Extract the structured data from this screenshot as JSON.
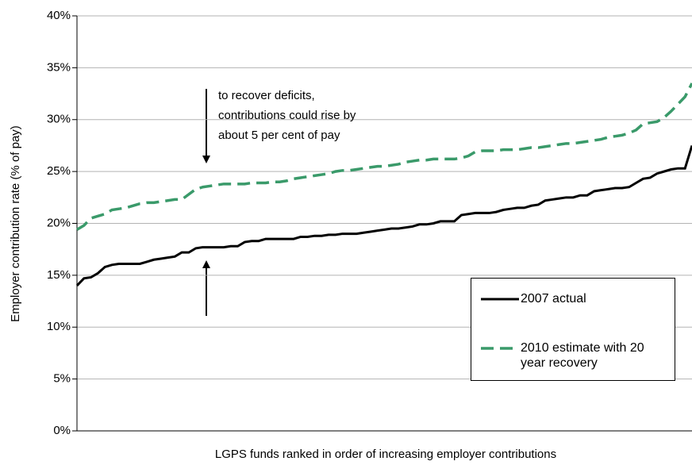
{
  "chart_data": {
    "type": "line",
    "y_label": "Employer contribution rate (% of pay)",
    "x_label": "LGPS funds ranked in order of increasing employer contributions",
    "annotation": [
      "to recover deficits,",
      "contributions could rise by",
      "about 5 per cent of pay"
    ],
    "categories": [
      null,
      null,
      null,
      null,
      null,
      null,
      null,
      null,
      null,
      null,
      null,
      null,
      null,
      null,
      null,
      null,
      null,
      null,
      null,
      null,
      null,
      null,
      null,
      null,
      null,
      null,
      null,
      null,
      null,
      null,
      null,
      null,
      null,
      null,
      null,
      null,
      null,
      null,
      null,
      null,
      null,
      null,
      null,
      null,
      null,
      null,
      null,
      null,
      null,
      null,
      null,
      null,
      null,
      null,
      null,
      null,
      null,
      null,
      null,
      null,
      null,
      null,
      null,
      null,
      null,
      null,
      null,
      null,
      null,
      null,
      null,
      null,
      null,
      null,
      null,
      null,
      null,
      null,
      null,
      null,
      null,
      null,
      null,
      null,
      null,
      null,
      null,
      null,
      null
    ],
    "series": [
      {
        "name": "2007 actual",
        "color": "#000000",
        "linestyle": "solid",
        "values": [
          14.0,
          14.7,
          14.8,
          15.2,
          15.8,
          16.0,
          16.1,
          16.1,
          16.1,
          16.1,
          16.3,
          16.5,
          16.6,
          16.7,
          16.8,
          17.2,
          17.2,
          17.6,
          17.7,
          17.7,
          17.7,
          17.7,
          17.8,
          17.8,
          18.2,
          18.3,
          18.3,
          18.5,
          18.5,
          18.5,
          18.5,
          18.5,
          18.7,
          18.7,
          18.8,
          18.8,
          18.9,
          18.9,
          19.0,
          19.0,
          19.0,
          19.1,
          19.2,
          19.3,
          19.4,
          19.5,
          19.5,
          19.6,
          19.7,
          19.9,
          19.9,
          20.0,
          20.2,
          20.2,
          20.2,
          20.8,
          20.9,
          21.0,
          21.0,
          21.0,
          21.1,
          21.3,
          21.4,
          21.5,
          21.5,
          21.7,
          21.8,
          22.2,
          22.3,
          22.4,
          22.5,
          22.5,
          22.7,
          22.7,
          23.1,
          23.2,
          23.3,
          23.4,
          23.4,
          23.5,
          23.9,
          24.3,
          24.4,
          24.8,
          25.0,
          25.2,
          25.3,
          25.3,
          27.5
        ]
      },
      {
        "name": "2010 estimate with 20 year recovery",
        "color": "#3a9a6a",
        "linestyle": "dashed",
        "values": [
          19.4,
          19.8,
          20.5,
          20.7,
          20.9,
          21.3,
          21.4,
          21.5,
          21.7,
          21.9,
          22.0,
          22.0,
          22.1,
          22.2,
          22.3,
          22.3,
          22.8,
          23.3,
          23.5,
          23.6,
          23.7,
          23.8,
          23.8,
          23.8,
          23.8,
          23.9,
          23.9,
          23.9,
          24.0,
          24.0,
          24.1,
          24.3,
          24.4,
          24.5,
          24.6,
          24.7,
          24.8,
          25.0,
          25.1,
          25.1,
          25.2,
          25.3,
          25.4,
          25.5,
          25.5,
          25.6,
          25.7,
          25.9,
          26.0,
          26.1,
          26.1,
          26.2,
          26.2,
          26.2,
          26.2,
          26.3,
          26.5,
          26.9,
          27.0,
          27.0,
          27.0,
          27.1,
          27.1,
          27.1,
          27.2,
          27.3,
          27.3,
          27.4,
          27.5,
          27.6,
          27.7,
          27.7,
          27.8,
          27.9,
          28.0,
          28.1,
          28.3,
          28.4,
          28.5,
          28.7,
          29.0,
          29.6,
          29.7,
          29.8,
          30.2,
          30.8,
          31.5,
          32.2,
          33.5
        ]
      }
    ],
    "ylim": [
      0,
      40
    ],
    "yticks": [
      {
        "value": 0,
        "label": "0%"
      },
      {
        "value": 5,
        "label": "5%"
      },
      {
        "value": 10,
        "label": "10%"
      },
      {
        "value": 15,
        "label": "15%"
      },
      {
        "value": 20,
        "label": "20%"
      },
      {
        "value": 25,
        "label": "25%"
      },
      {
        "value": 30,
        "label": "30%"
      },
      {
        "value": 35,
        "label": "35%"
      },
      {
        "value": 40,
        "label": "40%"
      }
    ],
    "grid": true,
    "legend": "lower right"
  }
}
